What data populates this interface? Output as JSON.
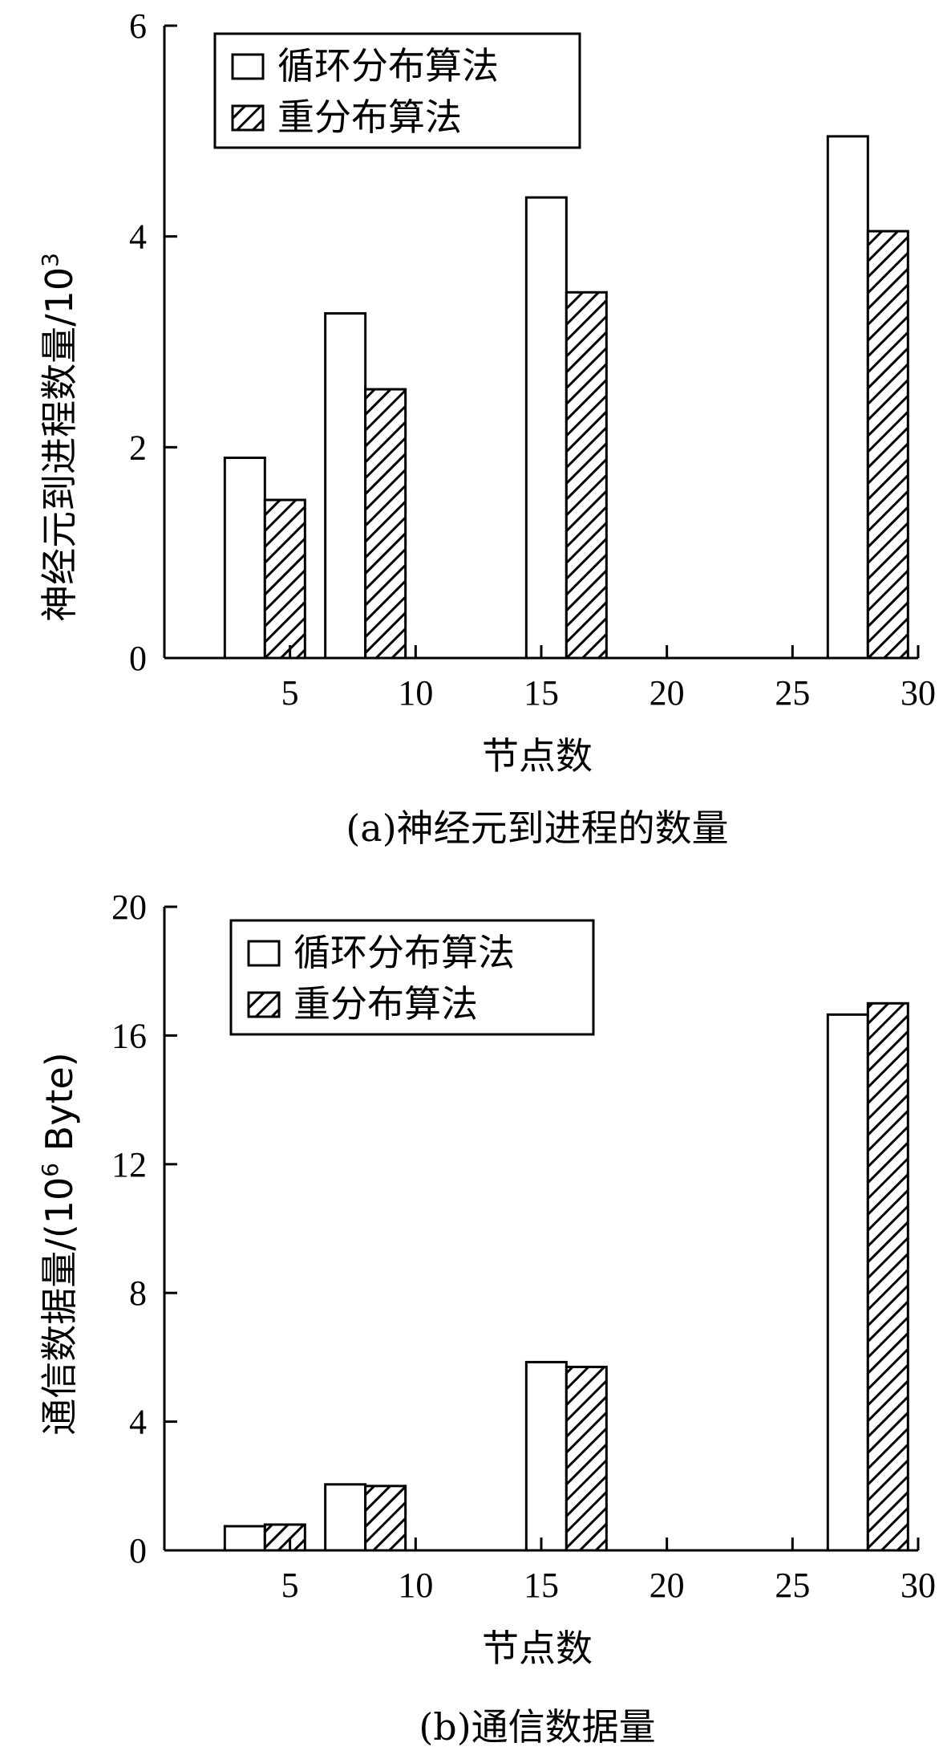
{
  "colors": {
    "ink": "#000000",
    "paper": "#ffffff"
  },
  "chart_data": [
    {
      "type": "bar",
      "caption": "(a)神经元到进程的数量",
      "xlabel": "节点数",
      "ylabel": "神经元到进程数量/10",
      "ylabel_exp": "3",
      "x_ticks": [
        5,
        10,
        15,
        20,
        25,
        30
      ],
      "y_ticks": [
        0,
        2,
        4,
        6
      ],
      "xlim": [
        0,
        30
      ],
      "ylim": [
        0,
        6
      ],
      "categories": [
        4,
        8,
        16,
        28
      ],
      "legend_position": "top-left",
      "grid": false,
      "series": [
        {
          "name": "循环分布算法",
          "pattern": "hollow",
          "values": [
            1.9,
            3.27,
            4.37,
            4.95
          ]
        },
        {
          "name": "重分布算法",
          "pattern": "hatched",
          "values": [
            1.5,
            2.55,
            3.47,
            4.05
          ]
        }
      ]
    },
    {
      "type": "bar",
      "caption": "(b)通信数据量",
      "xlabel": "节点数",
      "ylabel": "通信数据量/(10",
      "ylabel_exp": "6",
      "ylabel_tail": " Byte)",
      "x_ticks": [
        5,
        10,
        15,
        20,
        25,
        30
      ],
      "y_ticks": [
        0,
        4,
        8,
        12,
        16,
        20
      ],
      "xlim": [
        0,
        30
      ],
      "ylim": [
        0,
        20
      ],
      "categories": [
        4,
        8,
        16,
        28
      ],
      "legend_position": "top-left",
      "grid": false,
      "series": [
        {
          "name": "循环分布算法",
          "pattern": "hollow",
          "values": [
            0.75,
            2.05,
            5.85,
            16.65
          ]
        },
        {
          "name": "重分布算法",
          "pattern": "hatched",
          "values": [
            0.8,
            2.0,
            5.7,
            17.0
          ]
        }
      ]
    }
  ]
}
